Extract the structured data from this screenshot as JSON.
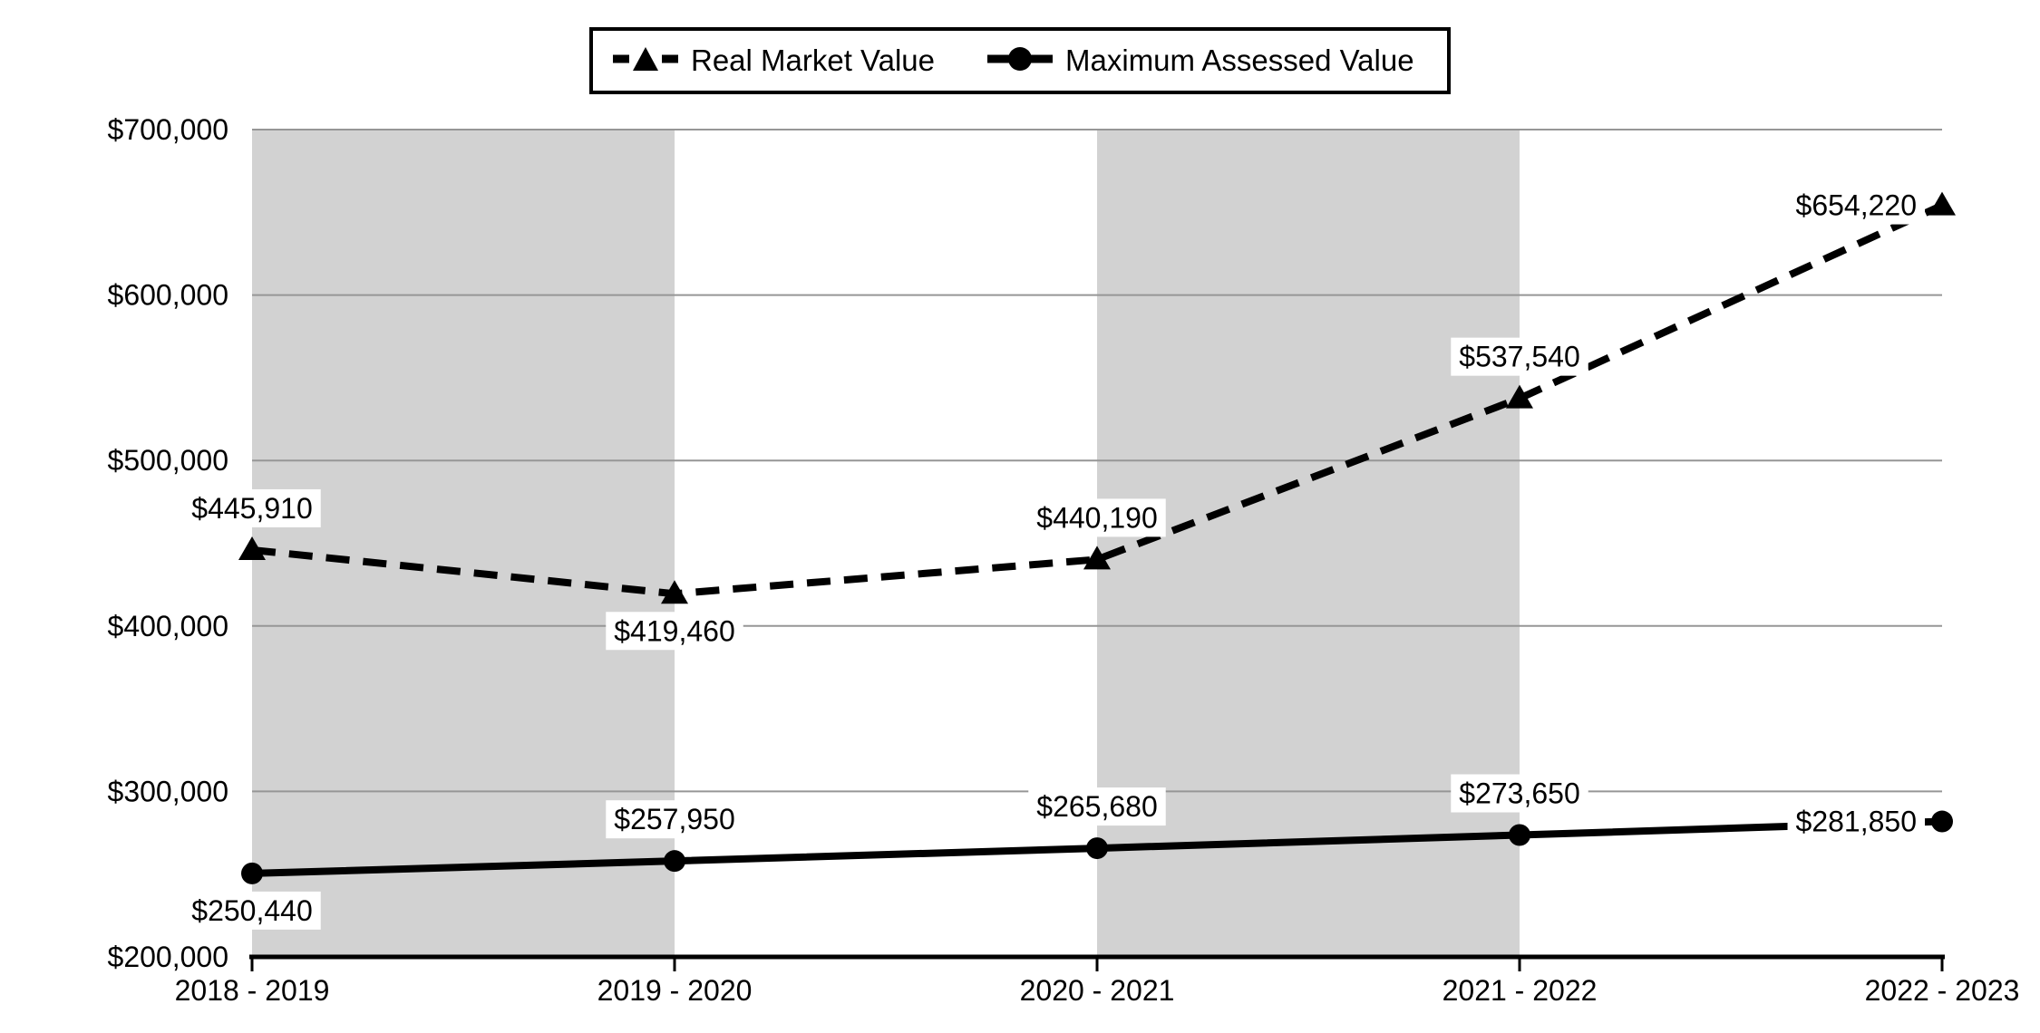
{
  "legend": {
    "items": [
      {
        "label": "Real Market Value",
        "line": "dashed",
        "marker": "triangle"
      },
      {
        "label": "Maximum Assessed Value",
        "line": "solid",
        "marker": "circle"
      }
    ]
  },
  "chart_data": {
    "type": "line",
    "categories": [
      "2018 - 2019",
      "2019 - 2020",
      "2020 - 2021",
      "2021 - 2022",
      "2022 - 2023"
    ],
    "series": [
      {
        "name": "Real Market Value",
        "style": "dashed",
        "marker": "triangle",
        "values": [
          445910,
          419460,
          440190,
          537540,
          654220
        ],
        "labels": [
          "$445,910",
          "$419,460",
          "$440,190",
          "$537,540",
          "$654,220"
        ],
        "label_positions": [
          "above",
          "below",
          "above",
          "above",
          "left"
        ]
      },
      {
        "name": "Maximum Assessed Value",
        "style": "solid",
        "marker": "circle",
        "values": [
          250440,
          257950,
          265680,
          273650,
          281850
        ],
        "labels": [
          "$250,440",
          "$257,950",
          "$265,680",
          "$273,650",
          "$281,850"
        ],
        "label_positions": [
          "below",
          "above",
          "above",
          "above",
          "left"
        ]
      }
    ],
    "ylim": [
      200000,
      700000
    ],
    "ytick_step": 100000,
    "ytick_labels": [
      "$200,000",
      "$300,000",
      "$400,000",
      "$500,000",
      "$600,000",
      "$700,000"
    ],
    "grid": true,
    "legend_position": "top-center",
    "plot_bands": {
      "intervals": [
        [
          0,
          1
        ],
        [
          2,
          3
        ]
      ]
    },
    "colors": {
      "series": "#000000",
      "gridline": "#969696",
      "axis": "#000000",
      "band": "#d2d2d2",
      "label_bg": "#ffffff",
      "text": "#000000",
      "background": "#ffffff"
    }
  }
}
